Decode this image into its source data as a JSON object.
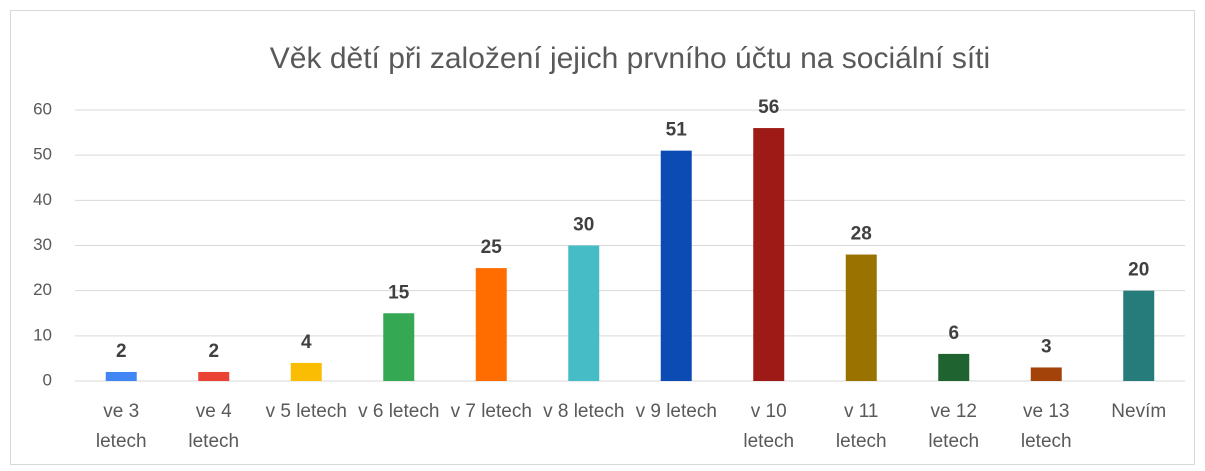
{
  "chart_data": {
    "type": "bar",
    "title": "Věk dětí při založení jejich prvního účtu na sociální síti",
    "categories": [
      "ve 3 letech",
      "ve 4 letech",
      "v 5 letech",
      "v 6 letech",
      "v 7 letech",
      "v 8 letech",
      "v 9 letech",
      "v 10 letech",
      "v 11 letech",
      "ve 12 letech",
      "ve 13 letech",
      "Nevím"
    ],
    "values": [
      2,
      2,
      4,
      15,
      25,
      30,
      51,
      56,
      28,
      6,
      3,
      20
    ],
    "colors": [
      "#4285f4",
      "#ea4335",
      "#fbbc04",
      "#34a853",
      "#ff6d01",
      "#46bdc6",
      "#0b4bb3",
      "#9e1a17",
      "#9a7200",
      "#1f6430",
      "#a3430a",
      "#267b7b"
    ],
    "ylim": [
      0,
      60
    ],
    "yticks": [
      0,
      10,
      20,
      30,
      40,
      50,
      60
    ],
    "grid": true
  }
}
